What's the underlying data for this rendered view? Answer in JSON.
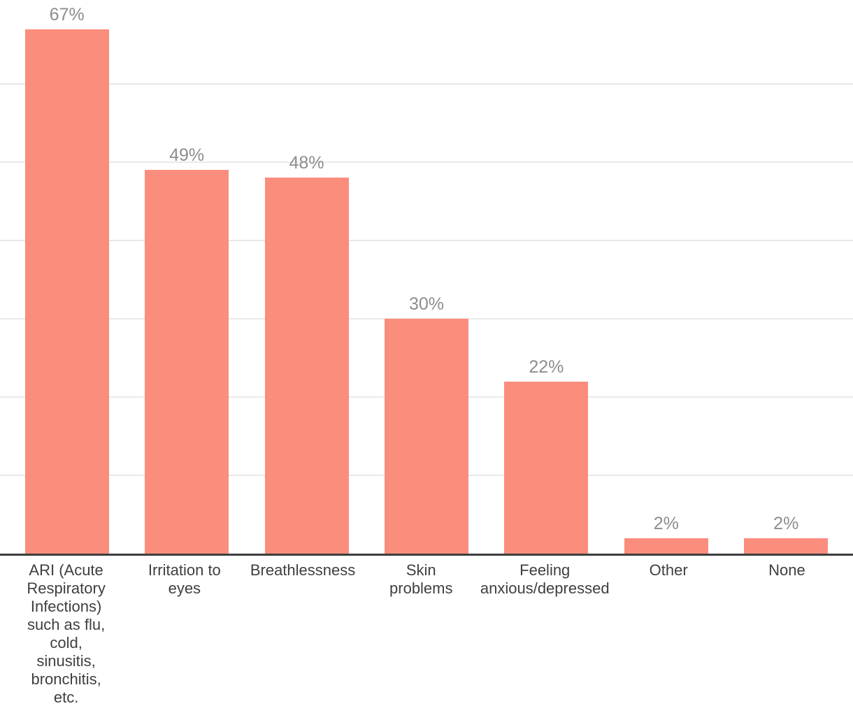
{
  "chart_data": {
    "type": "bar",
    "title": "",
    "xlabel": "",
    "ylabel": "",
    "categories": [
      "ARI (Acute Respiratory Infections) such as flu, cold, sinusitis, bronchitis, etc.",
      "Irritation to eyes",
      "Breathlessness",
      "Skin problems",
      "Feeling anxious/depressed",
      "Other",
      "None"
    ],
    "category_lines": [
      [
        "ARI (Acute",
        "Respiratory",
        "Infections)",
        "such as flu,",
        "cold,",
        "sinusitis,",
        "bronchitis,",
        "etc."
      ],
      [
        "Irritation to",
        "eyes"
      ],
      [
        "Breathlessness"
      ],
      [
        "Skin",
        "problems"
      ],
      [
        "Feeling",
        "anxious/depressed"
      ],
      [
        "Other"
      ],
      [
        "None"
      ]
    ],
    "values": [
      67,
      49,
      48,
      30,
      22,
      2,
      2
    ],
    "value_labels": [
      "67%",
      "49%",
      "48%",
      "30%",
      "22%",
      "2%",
      "2%"
    ],
    "unit": "%",
    "ylim": [
      0,
      70
    ],
    "grid": {
      "horizontal": true,
      "values": [
        10,
        20,
        30,
        40,
        50,
        60
      ],
      "y_tick_labels_visible": false
    },
    "legend": "none",
    "colors": {
      "bar": "#fb8d7d",
      "value_label": "#8d8d8d",
      "category_label": "#3f3f3f",
      "gridline": "#e9e9e9",
      "axis_line": "#3d3d3d",
      "background": "#ffffff"
    }
  }
}
